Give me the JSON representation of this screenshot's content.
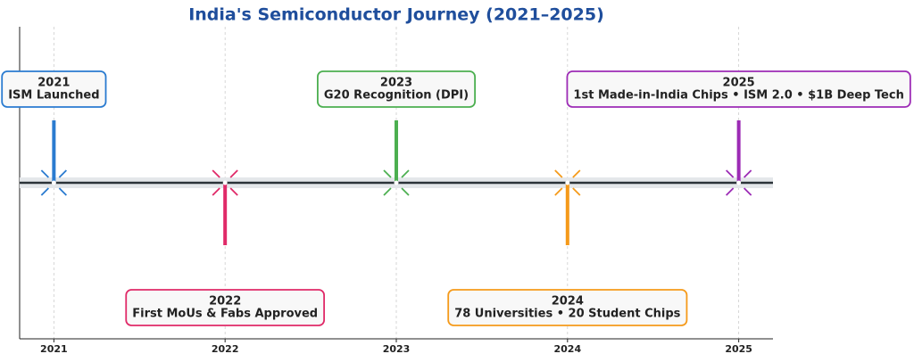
{
  "chart_data": {
    "type": "timeline",
    "title": "India's Semiconductor Journey (2021–2025)",
    "xlim": [
      2020.8,
      2025.2
    ],
    "xticks": [
      2021,
      2022,
      2023,
      2024,
      2025
    ],
    "grid": true,
    "events": [
      {
        "x": 2021,
        "label": "ISM Launched",
        "color": "#2a7bd0",
        "side": "above"
      },
      {
        "x": 2022,
        "label": "First MoUs & Fabs Approved",
        "color": "#e02a68",
        "side": "below"
      },
      {
        "x": 2023,
        "label": "G20 Recognition (DPI)",
        "color": "#4caf50",
        "side": "above"
      },
      {
        "x": 2024,
        "label": "78 Universities • 20 Student Chips",
        "color": "#f59a1a",
        "side": "below"
      },
      {
        "x": 2025,
        "label": "1st Made-in-India Chips • ISM 2.0 • $1B Deep Tech",
        "color": "#9c2bb5",
        "side": "above"
      }
    ]
  }
}
